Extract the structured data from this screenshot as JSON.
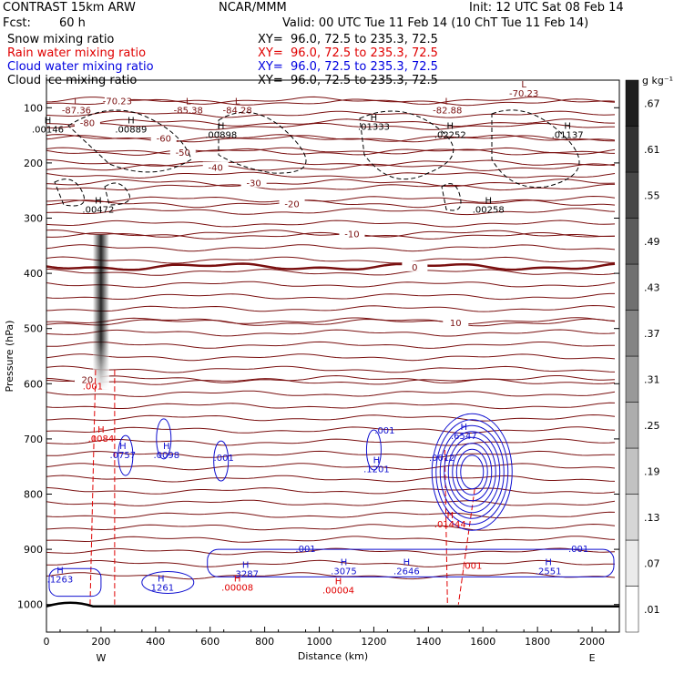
{
  "header": {
    "model": "CONTRAST 15km ARW",
    "org": "NCAR/MMM",
    "init": "Init: 12 UTC Sat 08 Feb 14",
    "fcst_label": "Fcst:",
    "fcst_value": "60 h",
    "valid": "Valid: 00 UTC Tue 11 Feb 14 (10 ChT Tue 11 Feb 14)"
  },
  "fields": [
    {
      "name": "Snow mixing ratio",
      "xy": "XY=  96.0, 72.5 to 235.3, 72.5",
      "color": "#000000"
    },
    {
      "name": "Rain water mixing ratio",
      "xy": "XY=  96.0, 72.5 to 235.3, 72.5",
      "color": "#e00000"
    },
    {
      "name": "Cloud water mixing ratio",
      "xy": "XY=  96.0, 72.5 to 235.3, 72.5",
      "color": "#0000e0"
    },
    {
      "name": "Cloud ice mixing ratio",
      "xy": "XY=  96.0, 72.5 to 235.3, 72.5",
      "color": "#000000"
    }
  ],
  "chart_data": {
    "type": "cross-section contour",
    "xlabel": "Distance (km)",
    "ylabel": "Pressure (hPa)",
    "xlim": [
      0,
      2100
    ],
    "ylim": [
      1050,
      50
    ],
    "x_ticks": [
      0,
      200,
      400,
      600,
      800,
      1000,
      1200,
      1400,
      1600,
      1800,
      2000
    ],
    "y_ticks": [
      100,
      200,
      300,
      400,
      500,
      600,
      700,
      800,
      900,
      1000
    ],
    "x_ends": {
      "left": "W",
      "right": "E"
    },
    "colorbar": {
      "units": "g kg⁻¹",
      "levels": [
        0.01,
        0.07,
        0.13,
        0.19,
        0.25,
        0.31,
        0.37,
        0.43,
        0.49,
        0.55,
        0.61,
        0.67
      ]
    },
    "temperature_isotherms": [
      {
        "label": "-80",
        "p": 127
      },
      {
        "label": "-70.23",
        "p": 87
      },
      {
        "label": "-60",
        "p": 155
      },
      {
        "label": "-50",
        "p": 180
      },
      {
        "label": "-40",
        "p": 208
      },
      {
        "label": "-30",
        "p": 236
      },
      {
        "label": "-20",
        "p": 274
      },
      {
        "label": "-10",
        "p": 328
      },
      {
        "label": "0",
        "p": 388
      },
      {
        "label": "10",
        "p": 489
      },
      {
        "label": "20",
        "p": 592
      }
    ],
    "snow_maxima": [
      {
        "label": "H",
        "value": ".00472",
        "x": 190,
        "p": 290
      },
      {
        "label": "H",
        "value": ".00889",
        "x": 310,
        "p": 145
      },
      {
        "label": "H",
        "value": ".00898",
        "x": 640,
        "p": 155
      },
      {
        "label": "H",
        "value": ".01333",
        "x": 1200,
        "p": 140
      },
      {
        "label": "H",
        "value": ".02252",
        "x": 1480,
        "p": 155
      },
      {
        "label": "H",
        "value": ".00258",
        "x": 1620,
        "p": 290
      },
      {
        "label": "H",
        "value": ".01137",
        "x": 1910,
        "p": 155
      },
      {
        "label": "H",
        "value": ".00146",
        "x": 5,
        "p": 145
      }
    ],
    "low_labels": [
      {
        "label": "L",
        "value": "-87.36",
        "x": 110,
        "p": 110
      },
      {
        "label": "L",
        "value": "-85.38",
        "x": 520,
        "p": 110
      },
      {
        "label": "L",
        "value": "-84.28",
        "x": 700,
        "p": 110
      },
      {
        "label": "L",
        "value": "-82.88",
        "x": 1470,
        "p": 110
      },
      {
        "label": "L",
        "value": "-70.23",
        "x": 1750,
        "p": 80
      }
    ],
    "rain_maxima": [
      {
        "label": "H",
        "value": ".0084",
        "x": 200,
        "p": 705
      },
      {
        "label": "H",
        "value": ".00008",
        "x": 700,
        "p": 975
      },
      {
        "label": "H",
        "value": ".00004",
        "x": 1070,
        "p": 980
      },
      {
        "label": "H",
        "value": ".01444",
        "x": 1480,
        "p": 860
      },
      {
        "label": "",
        "value": ".001",
        "x": 170,
        "p": 610
      },
      {
        "label": "",
        "value": ".001",
        "x": 1560,
        "p": 935
      }
    ],
    "cloud_water_maxima": [
      {
        "label": "H",
        "value": ".0757",
        "x": 280,
        "p": 735
      },
      {
        "label": "H",
        "value": ".0098",
        "x": 440,
        "p": 735
      },
      {
        "label": "",
        "value": ".001",
        "x": 650,
        "p": 740
      },
      {
        "label": "H",
        "value": ".1201",
        "x": 1210,
        "p": 760
      },
      {
        "label": "",
        "value": ".001",
        "x": 1240,
        "p": 690
      },
      {
        "label": "H",
        "value": ".6547",
        "x": 1530,
        "p": 700
      },
      {
        "label": "",
        "value": ".0012",
        "x": 1450,
        "p": 740
      },
      {
        "label": "H",
        "value": ".1263",
        "x": 50,
        "p": 960
      },
      {
        "label": "H",
        "value": ".1261",
        "x": 420,
        "p": 975
      },
      {
        "label": "H",
        "value": ".3287",
        "x": 730,
        "p": 950
      },
      {
        "label": "H",
        "value": ".3075",
        "x": 1090,
        "p": 945
      },
      {
        "label": "H",
        "value": ".2646",
        "x": 1320,
        "p": 945
      },
      {
        "label": "H",
        "value": ".2551",
        "x": 1840,
        "p": 945
      },
      {
        "label": "",
        "value": ".001",
        "x": 950,
        "p": 905
      },
      {
        "label": "",
        "value": ".001",
        "x": 1950,
        "p": 905
      }
    ]
  }
}
